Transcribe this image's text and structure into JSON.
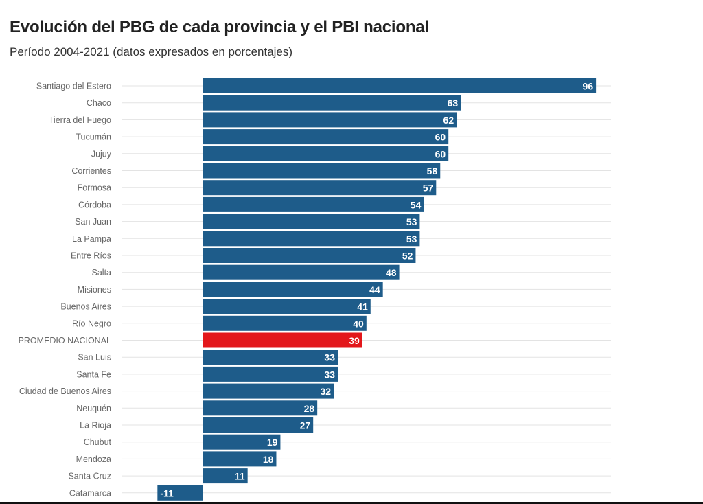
{
  "header": {
    "title": "Evolución del PBG de cada provincia y el PBI nacional",
    "subtitle": "Período 2004-2021 (datos expresados en porcentajes)"
  },
  "colors": {
    "bar": "#1e5c8a",
    "highlight": "#e3171b",
    "grid": "#e3e3e3",
    "category_label": "#666666",
    "value_label": "#ffffff"
  },
  "chart_data": {
    "type": "bar",
    "orientation": "horizontal",
    "title": "Evolución del PBG de cada provincia y el PBI nacional",
    "subtitle": "Período 2004-2021 (datos expresados en porcentajes)",
    "categories": [
      "Santiago del Estero",
      "Chaco",
      "Tierra del Fuego",
      "Tucumán",
      "Jujuy",
      "Corrientes",
      "Formosa",
      "Córdoba",
      "San Juan",
      "La Pampa",
      "Entre Ríos",
      "Salta",
      "Misiones",
      "Buenos Aires",
      "Río Negro",
      "PROMEDIO NACIONAL",
      "San Luis",
      "Santa Fe",
      "Ciudad de Buenos Aires",
      "Neuquén",
      "La Rioja",
      "Chubut",
      "Mendoza",
      "Santa Cruz",
      "Catamarca"
    ],
    "values": [
      96,
      63,
      62,
      60,
      60,
      58,
      57,
      54,
      53,
      53,
      52,
      48,
      44,
      41,
      40,
      39,
      33,
      33,
      32,
      28,
      27,
      19,
      18,
      11,
      -11
    ],
    "value_labels": [
      "96",
      "63",
      "62",
      "60",
      "60",
      "58",
      "57",
      "54",
      "53",
      "53",
      "52",
      "48",
      "44",
      "41",
      "40",
      "39",
      "33",
      "33",
      "32",
      "28",
      "27",
      "19",
      "18",
      "11",
      "-11"
    ],
    "highlight_category": "PROMEDIO NACIONAL",
    "xlim": [
      -11,
      100
    ],
    "xlabel": "",
    "ylabel": "",
    "grid": true,
    "legend": "none"
  }
}
